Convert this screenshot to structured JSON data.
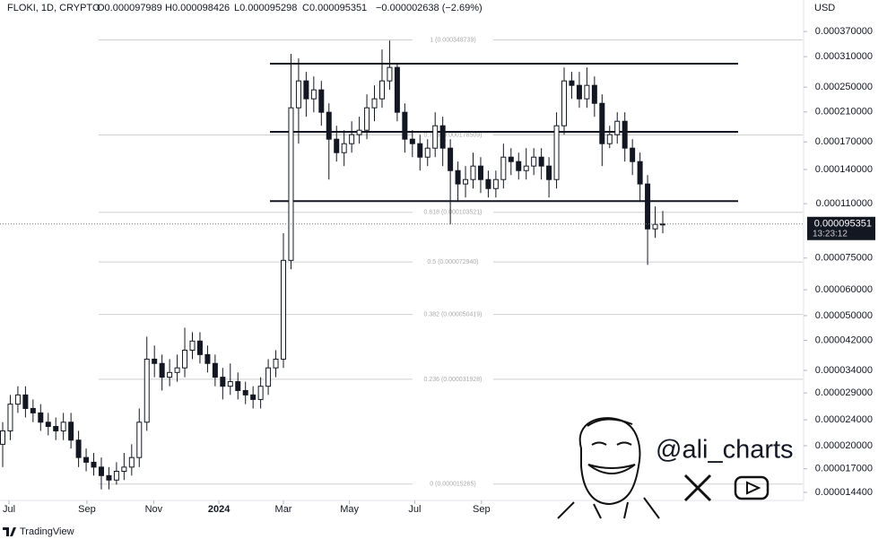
{
  "chart_data": {
    "type": "candlestick",
    "symbol": "FLOKI, 1D, CRYPTO",
    "header": {
      "open": "O0.000097989",
      "high": "H0.000098426",
      "low": "L0.000095298",
      "close": "C0.000095351",
      "change": "−0.000002638 (−2.69%)"
    },
    "currency": "USD",
    "last_price_label": "0.000095351",
    "countdown": "13:23:12",
    "color": "#131722",
    "log_scale": true,
    "ylim": [
      1.36e-05,
      0.000462
    ],
    "yticks": [
      {
        "value": 0.00037,
        "label": "0.000370000"
      },
      {
        "value": 0.00031,
        "label": "0.000310000"
      },
      {
        "value": 0.00025,
        "label": "0.000250000"
      },
      {
        "value": 0.00021,
        "label": "0.000210000"
      },
      {
        "value": 0.00017,
        "label": "0.000170000"
      },
      {
        "value": 0.00014,
        "label": "0.000140000"
      },
      {
        "value": 0.00011,
        "label": "0.000110000"
      },
      {
        "value": 7.5e-05,
        "label": "0.000075000"
      },
      {
        "value": 6e-05,
        "label": "0.000060000"
      },
      {
        "value": 5e-05,
        "label": "0.000050000"
      },
      {
        "value": 4.2e-05,
        "label": "0.000042000"
      },
      {
        "value": 3.4e-05,
        "label": "0.000034000"
      },
      {
        "value": 2.9e-05,
        "label": "0.000029000"
      },
      {
        "value": 2.4e-05,
        "label": "0.000024000"
      },
      {
        "value": 2e-05,
        "label": "0.000020000"
      },
      {
        "value": 1.7e-05,
        "label": "0.000017000"
      },
      {
        "value": 1.44e-05,
        "label": "0.000014400"
      }
    ],
    "xlim": [
      -0.355,
      105.56
    ],
    "xticks": [
      {
        "value": 0.83,
        "label": "Jul"
      },
      {
        "value": 11.1,
        "label": "Sep"
      },
      {
        "value": 19.9,
        "label": "Nov"
      },
      {
        "value": 28.5,
        "label": "2024"
      },
      {
        "value": 37.0,
        "label": "Mar"
      },
      {
        "value": 45.7,
        "label": "May"
      },
      {
        "value": 54.3,
        "label": "Jul"
      },
      {
        "value": 63.1,
        "label": "Sep"
      }
    ],
    "fib_levels": [
      {
        "value": 0.000348739,
        "label": "1 (0.000348739)"
      },
      {
        "value": 0.000178509,
        "label": "0.786 (0.000178509)"
      },
      {
        "value": 0.000103521,
        "label": "0.618 (0.000103521)"
      },
      {
        "value": 7.294e-05,
        "label": "0.5 (0.000072940)"
      },
      {
        "value": 5.0419e-05,
        "label": "0.382 (0.000050419)"
      },
      {
        "value": 3.1928e-05,
        "label": "0.236 (0.000031928)"
      },
      {
        "value": 1.5265e-05,
        "label": "0 (0.000015265)"
      }
    ],
    "channel_lines": [
      0.000295,
      0.0001825,
      0.000112
    ],
    "open": [
      2.02e-05,
      2.22e-05,
      2.68e-05,
      2.86e-05,
      2.6e-05,
      2.52e-05,
      2.36e-05,
      2.29e-05,
      2.22e-05,
      2.36e-05,
      2.08e-05,
      1.84e-05,
      1.78e-05,
      1.72e-05,
      1.62e-05,
      1.57e-05,
      1.67e-05,
      1.72e-05,
      1.84e-05,
      2.36e-05,
      3.68e-05,
      3.57e-05,
      3.24e-05,
      3.35e-05,
      3.46e-05,
      3.92e-05,
      4.18e-05,
      3.8e-05,
      3.57e-05,
      3.24e-05,
      3.04e-05,
      3.14e-05,
      2.95e-05,
      2.86e-05,
      2.77e-05,
      3.04e-05,
      3.46e-05,
      3.68e-05,
      7.38e-05,
      0.0002162,
      0.0002613,
      0.0002303,
      0.0002453,
      0.0002095,
      0.0001733,
      0.0001576,
      0.0001679,
      0.0001789,
      0.0001846,
      0.0002162,
      0.0002303,
      0.0002613,
      0.0002873,
      0.0002095,
      0.0001733,
      0.0001679,
      0.0001527,
      0.0001627,
      0.0001905,
      0.0001627,
      0.0001389,
      0.0001264,
      0.0001304,
      0.0001434,
      0.0001304,
      0.0001224,
      0.0001304,
      0.0001527,
      0.000148,
      0.0001389,
      0.0001434,
      0.0001527,
      0.0001434,
      0.0001304,
      0.0001905,
      0.0002613,
      0.0002532,
      0.0002303,
      0.0002532,
      0.0002231,
      0.0001679,
      0.0001789,
      0.0001966,
      0.0001627,
      0.000148,
      0.0001264,
      9.21e-05,
      9.51e-05
    ],
    "high": [
      2.36e-05,
      2.86e-05,
      3.04e-05,
      3.04e-05,
      2.77e-05,
      2.68e-05,
      2.52e-05,
      2.44e-05,
      2.52e-05,
      2.52e-05,
      2.22e-05,
      1.96e-05,
      1.9e-05,
      1.84e-05,
      1.72e-05,
      1.78e-05,
      1.9e-05,
      2.02e-05,
      2.6e-05,
      4.31e-05,
      4.05e-05,
      3.8e-05,
      3.68e-05,
      3.8e-05,
      4.59e-05,
      4.45e-05,
      4.45e-05,
      4.05e-05,
      3.8e-05,
      3.46e-05,
      3.57e-05,
      3.35e-05,
      3.14e-05,
      3.04e-05,
      3.24e-05,
      3.68e-05,
      3.92e-05,
      8.93e-05,
      0.0003159,
      0.0003061,
      0.0002784,
      0.0002697,
      0.0002613,
      0.0002231,
      0.0001905,
      0.0001846,
      0.0001966,
      0.000203,
      0.0002377,
      0.0002532,
      0.000326,
      0.0003473,
      0.0002966,
      0.0002231,
      0.0001846,
      0.0001789,
      0.0001733,
      0.0002095,
      0.000203,
      0.0001733,
      0.000148,
      0.0001434,
      0.0001576,
      0.0001527,
      0.0001389,
      0.0001389,
      0.0001679,
      0.0001627,
      0.0001576,
      0.0001627,
      0.0001627,
      0.0001627,
      0.0001527,
      0.0002095,
      0.0002873,
      0.0002784,
      0.0002784,
      0.0002873,
      0.0002697,
      0.0002377,
      0.0001905,
      0.0002095,
      0.0002095,
      0.0001733,
      0.0001576,
      0.0001346,
      0.0001079,
      0.0001045
    ],
    "low": [
      1.72e-05,
      2.08e-05,
      2.52e-05,
      2.44e-05,
      2.36e-05,
      2.22e-05,
      2.15e-05,
      2.08e-05,
      2.08e-05,
      1.96e-05,
      1.72e-05,
      1.67e-05,
      1.62e-05,
      1.47e-05,
      1.47e-05,
      1.52e-05,
      1.57e-05,
      1.62e-05,
      1.72e-05,
      2.22e-05,
      3.24e-05,
      2.95e-05,
      3.04e-05,
      3.14e-05,
      3.24e-05,
      3.68e-05,
      3.57e-05,
      3.35e-05,
      3.04e-05,
      2.77e-05,
      2.86e-05,
      2.77e-05,
      2.68e-05,
      2.6e-05,
      2.6e-05,
      2.86e-05,
      3.24e-05,
      3.46e-05,
      6.93e-05,
      0.0001679,
      0.000203,
      0.0002095,
      0.0001905,
      0.0001304,
      0.000148,
      0.0001434,
      0.0001576,
      0.0001679,
      0.0001733,
      0.0001966,
      0.0002162,
      0.0002453,
      0.0001966,
      0.0001576,
      0.0001527,
      0.0001389,
      0.0001434,
      0.0001527,
      0.0001434,
      9.51e-05,
      0.0001114,
      0.0001149,
      0.0001224,
      0.0001186,
      0.0001149,
      0.0001149,
      0.0001224,
      0.0001346,
      0.0001304,
      0.0001304,
      0.0001346,
      0.0001304,
      0.0001149,
      0.0001224,
      0.0001789,
      0.0002303,
      0.0002162,
      0.0002162,
      0.000203,
      0.0001434,
      0.0001627,
      0.0001679,
      0.000148,
      0.0001346,
      0.0001114,
      7.15e-05,
      8.65e-05,
      8.93e-05
    ],
    "close": [
      2.22e-05,
      2.68e-05,
      2.86e-05,
      2.6e-05,
      2.52e-05,
      2.36e-05,
      2.29e-05,
      2.22e-05,
      2.36e-05,
      2.08e-05,
      1.84e-05,
      1.78e-05,
      1.72e-05,
      1.62e-05,
      1.57e-05,
      1.67e-05,
      1.72e-05,
      1.84e-05,
      2.36e-05,
      3.68e-05,
      3.57e-05,
      3.24e-05,
      3.35e-05,
      3.46e-05,
      3.92e-05,
      4.18e-05,
      3.8e-05,
      3.57e-05,
      3.24e-05,
      3.04e-05,
      3.14e-05,
      2.95e-05,
      2.86e-05,
      2.77e-05,
      3.04e-05,
      3.46e-05,
      3.68e-05,
      7.38e-05,
      0.0002162,
      0.0002613,
      0.0002303,
      0.0002453,
      0.0002095,
      0.0001733,
      0.0001576,
      0.0001679,
      0.0001789,
      0.0001846,
      0.0002162,
      0.0002303,
      0.0002613,
      0.0002873,
      0.0002095,
      0.0001733,
      0.0001679,
      0.0001527,
      0.0001627,
      0.0001905,
      0.0001627,
      0.0001389,
      0.0001264,
      0.0001304,
      0.0001434,
      0.0001304,
      0.0001224,
      0.0001304,
      0.0001527,
      0.000148,
      0.0001389,
      0.0001434,
      0.0001527,
      0.0001434,
      0.0001304,
      0.0001905,
      0.0002613,
      0.0002532,
      0.0002303,
      0.0002532,
      0.0002231,
      0.0001679,
      0.0001789,
      0.0001966,
      0.0001627,
      0.000148,
      0.0001264,
      9.21e-05,
      9.51e-05,
      9.5351e-05
    ],
    "watermark": "@ali_charts",
    "footer": "TradingView"
  }
}
